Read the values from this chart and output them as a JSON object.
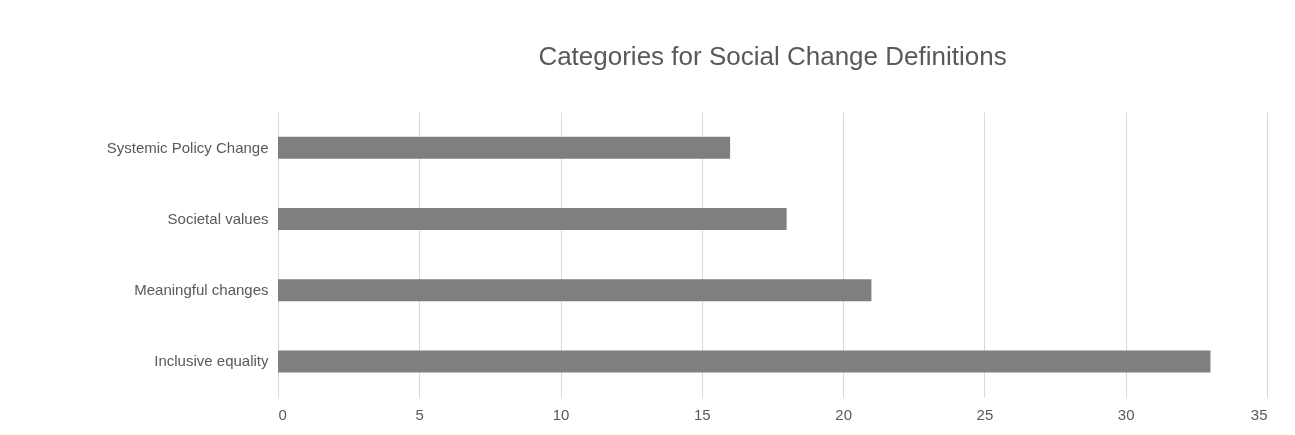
{
  "chart_data": {
    "type": "bar",
    "orientation": "horizontal",
    "title": "Categories for Social Change Definitions",
    "categories": [
      "Systemic Policy Change",
      "Societal values",
      "Meaningful changes",
      "Inclusive equality"
    ],
    "values": [
      16,
      18,
      21,
      33
    ],
    "color": "#7f7f7f",
    "xlim": [
      0,
      35
    ],
    "xticks": [
      0,
      5,
      10,
      15,
      20,
      25,
      30,
      35
    ],
    "grid": "x"
  }
}
